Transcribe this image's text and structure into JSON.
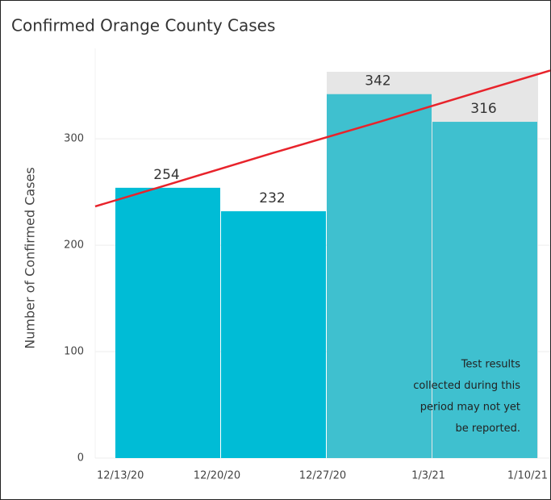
{
  "chart_data": {
    "type": "bar",
    "title": "Confirmed Orange County Cases",
    "y_label": "Number of Confirmed Cases",
    "categories": [
      "12/13/20",
      "12/20/20",
      "12/27/20",
      "1/3/21"
    ],
    "xtick_labels": [
      "12/13/20",
      "12/20/20",
      "12/27/20",
      "1/3/21",
      "1/10/21"
    ],
    "values": [
      254,
      232,
      342,
      316
    ],
    "colors": [
      "#00bcd6",
      "#00bcd6",
      "#3fc0cf",
      "#3fc0cf"
    ],
    "background_values": [
      null,
      null,
      363,
      363
    ],
    "background_color": "#e6e6e6",
    "trend_values": [
      257,
      287,
      316,
      346
    ],
    "trend_color": "#e8232b",
    "ylim": [
      0,
      385
    ],
    "yticks": [
      0,
      100,
      200,
      300
    ],
    "grid": true,
    "annotation": [
      "Test results",
      "collected during this",
      "period may not yet",
      "be reported."
    ]
  }
}
